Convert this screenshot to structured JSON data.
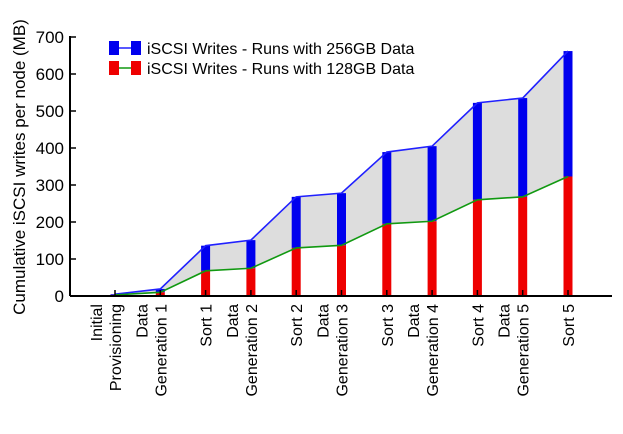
{
  "chart_data": {
    "type": "bar",
    "ylabel": "Cumulative iSCSI writes per node (MB)",
    "xlabel": "",
    "ylim": [
      0,
      700
    ],
    "yticks": [
      0,
      100,
      200,
      300,
      400,
      500,
      600,
      700
    ],
    "legend_position": "top-left",
    "categories": [
      [
        "Initial",
        "Provisioning"
      ],
      [
        "Data",
        "Generation 1"
      ],
      [
        "Sort 1"
      ],
      [
        "Data",
        "Generation 2"
      ],
      [
        "Sort 2"
      ],
      [
        "Data",
        "Generation 3"
      ],
      [
        "Sort 3"
      ],
      [
        "Data",
        "Generation 4"
      ],
      [
        "Sort 4"
      ],
      [
        "Data",
        "Generation 5"
      ],
      [
        "Sort 5"
      ]
    ],
    "series": [
      {
        "name": "iSCSI Writes - Runs with 256GB Data",
        "color": "#0000ee",
        "line_color": "#2020ff",
        "values": [
          5,
          19,
          136,
          151,
          268,
          278,
          389,
          405,
          522,
          535,
          662
        ]
      },
      {
        "name": "iSCSI Writes - Runs with 128GB Data",
        "color": "#ee0000",
        "line_color": "#119911",
        "values": [
          3,
          10,
          68,
          75,
          130,
          137,
          195,
          202,
          260,
          268,
          323
        ]
      }
    ],
    "fill_between_color": "#dddddd"
  }
}
